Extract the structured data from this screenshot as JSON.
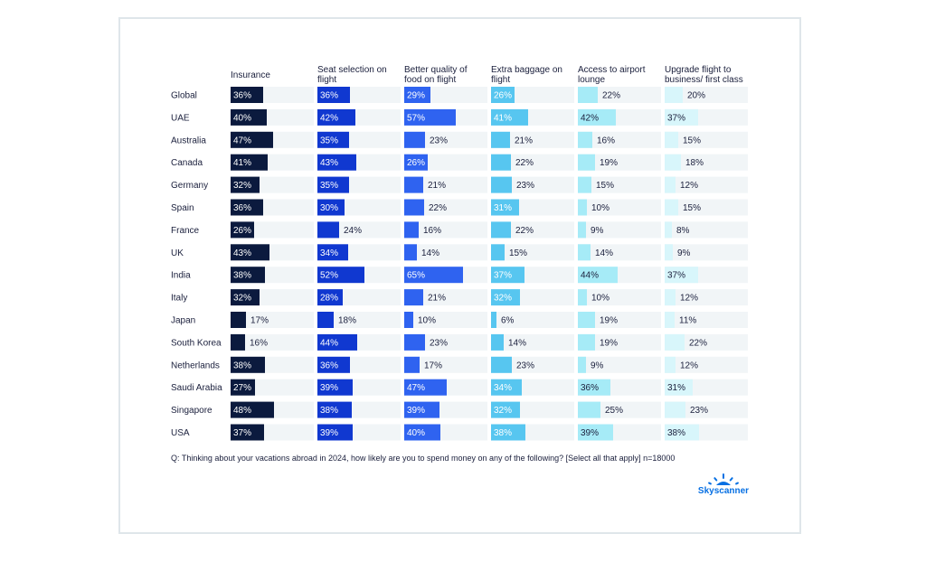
{
  "chart_data": {
    "type": "bar",
    "columns": [
      {
        "lines": [
          "Insurance"
        ],
        "color": "#0b1a3e",
        "textInside": "#ffffff",
        "textOutside": "#1a1f3c"
      },
      {
        "lines": [
          "Seat selection on",
          "flight"
        ],
        "color": "#1038d0",
        "textInside": "#ffffff",
        "textOutside": "#1a1f3c"
      },
      {
        "lines": [
          "Better quality of",
          "food on flight"
        ],
        "color": "#2f63f0",
        "textInside": "#ffffff",
        "textOutside": "#1a1f3c"
      },
      {
        "lines": [
          "Extra baggage on",
          "flight"
        ],
        "color": "#57c6f0",
        "textInside": "#ffffff",
        "textOutside": "#1a1f3c"
      },
      {
        "lines": [
          "Access to airport",
          "lounge"
        ],
        "color": "#a6ebf7",
        "textInside": "#1a1f3c",
        "textOutside": "#1a1f3c"
      },
      {
        "lines": [
          "Upgrade flight to",
          "business/ first class"
        ],
        "color": "#d8f6fb",
        "textInside": "#1a1f3c",
        "textOutside": "#1a1f3c"
      }
    ],
    "rows": [
      {
        "country": "Global",
        "values": [
          36,
          36,
          29,
          26,
          22,
          20
        ]
      },
      {
        "country": "UAE",
        "values": [
          40,
          42,
          57,
          41,
          42,
          37
        ]
      },
      {
        "country": "Australia",
        "values": [
          47,
          35,
          23,
          21,
          16,
          15
        ]
      },
      {
        "country": "Canada",
        "values": [
          41,
          43,
          26,
          22,
          19,
          18
        ]
      },
      {
        "country": "Germany",
        "values": [
          32,
          35,
          21,
          23,
          15,
          12
        ]
      },
      {
        "country": "Spain",
        "values": [
          36,
          30,
          22,
          31,
          10,
          15
        ]
      },
      {
        "country": "France",
        "values": [
          26,
          24,
          16,
          22,
          9,
          8
        ]
      },
      {
        "country": "UK",
        "values": [
          43,
          34,
          14,
          15,
          14,
          9
        ]
      },
      {
        "country": "India",
        "values": [
          38,
          52,
          65,
          37,
          44,
          37
        ]
      },
      {
        "country": "Italy",
        "values": [
          32,
          28,
          21,
          32,
          10,
          12
        ]
      },
      {
        "country": "Japan",
        "values": [
          17,
          18,
          10,
          6,
          19,
          11
        ]
      },
      {
        "country": "South Korea",
        "values": [
          16,
          44,
          23,
          14,
          19,
          22
        ]
      },
      {
        "country": "Netherlands",
        "values": [
          38,
          36,
          17,
          23,
          9,
          12
        ]
      },
      {
        "country": "Saudi Arabia",
        "values": [
          27,
          39,
          47,
          34,
          36,
          31
        ]
      },
      {
        "country": "Singapore",
        "values": [
          48,
          38,
          39,
          32,
          25,
          23
        ]
      },
      {
        "country": "USA",
        "values": [
          37,
          39,
          40,
          38,
          39,
          38
        ]
      }
    ],
    "unit": "%",
    "rowBackground": "#f1f5f7"
  },
  "footnote": "Q: Thinking about your vacations abroad in 2024, how likely are you to spend money on any of the following? [Select all that apply] n=18000",
  "logo": {
    "text": "Skyscanner",
    "color": "#0770e3"
  }
}
